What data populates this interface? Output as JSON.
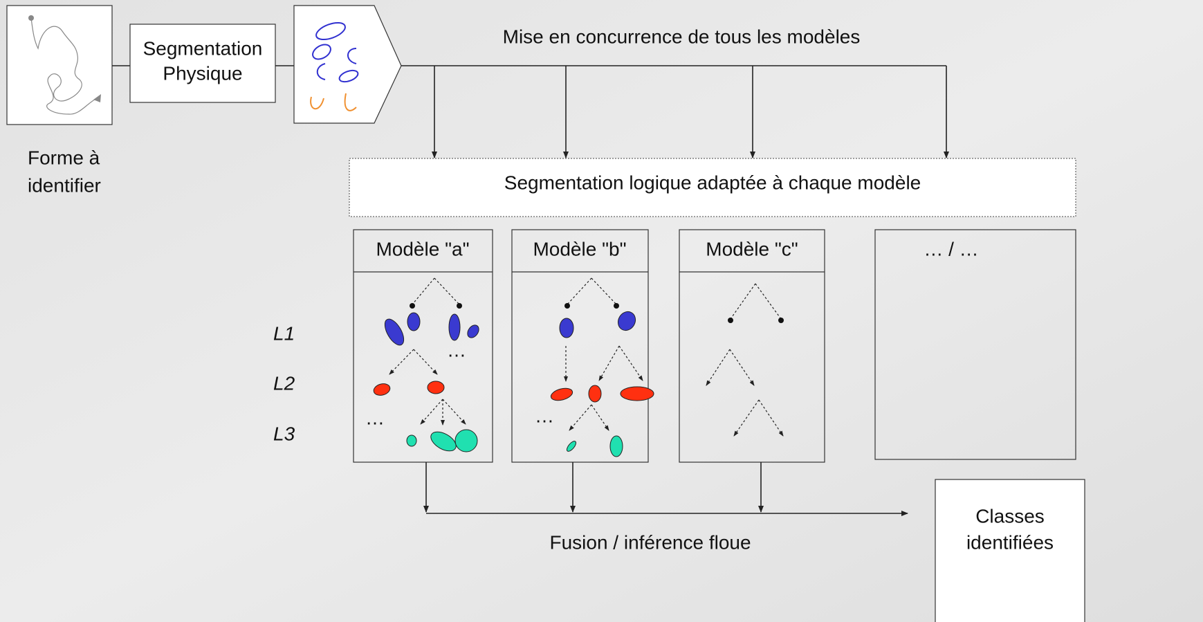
{
  "input": {
    "label": [
      "Forme à",
      "identifier"
    ]
  },
  "physical_segmentation": {
    "label": [
      "Segmentation",
      "Physique"
    ]
  },
  "competition_label": "Mise en concurrence de tous les modèles",
  "logical_segmentation": "Segmentation logique adaptée à chaque modèle",
  "models": [
    {
      "title": "Modèle \"a\""
    },
    {
      "title": "Modèle \"b\""
    },
    {
      "title": "Modèle \"c\""
    },
    {
      "title": "… / …"
    }
  ],
  "levels": [
    "L1",
    "L2",
    "L3"
  ],
  "ellipses": [
    "…",
    "…",
    "…"
  ],
  "output": {
    "label": [
      "Classes",
      "identifiées"
    ]
  },
  "fusion_label": "Fusion / inférence floue"
}
